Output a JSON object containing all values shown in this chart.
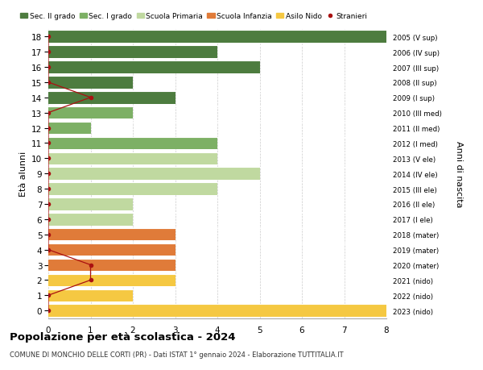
{
  "ages": [
    18,
    17,
    16,
    15,
    14,
    13,
    12,
    11,
    10,
    9,
    8,
    7,
    6,
    5,
    4,
    3,
    2,
    1,
    0
  ],
  "years": [
    "2005 (V sup)",
    "2006 (IV sup)",
    "2007 (III sup)",
    "2008 (II sup)",
    "2009 (I sup)",
    "2010 (III med)",
    "2011 (II med)",
    "2012 (I med)",
    "2013 (V ele)",
    "2014 (IV ele)",
    "2015 (III ele)",
    "2016 (II ele)",
    "2017 (I ele)",
    "2018 (mater)",
    "2019 (mater)",
    "2020 (mater)",
    "2021 (nido)",
    "2022 (nido)",
    "2023 (nido)"
  ],
  "bar_values": [
    8,
    4,
    5,
    2,
    3,
    2,
    1,
    4,
    4,
    5,
    4,
    2,
    2,
    3,
    3,
    3,
    3,
    2,
    8
  ],
  "bar_colors": [
    "#4d7c3f",
    "#4d7c3f",
    "#4d7c3f",
    "#4d7c3f",
    "#4d7c3f",
    "#7db065",
    "#7db065",
    "#7db065",
    "#c0d9a0",
    "#c0d9a0",
    "#c0d9a0",
    "#c0d9a0",
    "#c0d9a0",
    "#e07b39",
    "#e07b39",
    "#e07b39",
    "#f5c842",
    "#f5c842",
    "#f5c842"
  ],
  "stranieri_x": [
    0,
    0,
    0,
    0,
    1,
    0,
    0,
    0,
    0,
    0,
    0,
    0,
    0,
    0,
    0,
    1,
    1,
    0,
    0
  ],
  "stranieri_color": "#aa1111",
  "legend_labels": [
    "Sec. II grado",
    "Sec. I grado",
    "Scuola Primaria",
    "Scuola Infanzia",
    "Asilo Nido",
    "Stranieri"
  ],
  "legend_colors": [
    "#4d7c3f",
    "#7db065",
    "#c0d9a0",
    "#e07b39",
    "#f5c842",
    "#aa1111"
  ],
  "ylabel": "Età alunni",
  "right_ylabel": "Anni di nascita",
  "title": "Popolazione per età scolastica - 2024",
  "subtitle": "COMUNE DI MONCHIO DELLE CORTI (PR) - Dati ISTAT 1° gennaio 2024 - Elaborazione TUTTITALIA.IT",
  "xlim": [
    0,
    8
  ],
  "bar_height": 0.82,
  "background_color": "#ffffff",
  "grid_color": "#cccccc"
}
